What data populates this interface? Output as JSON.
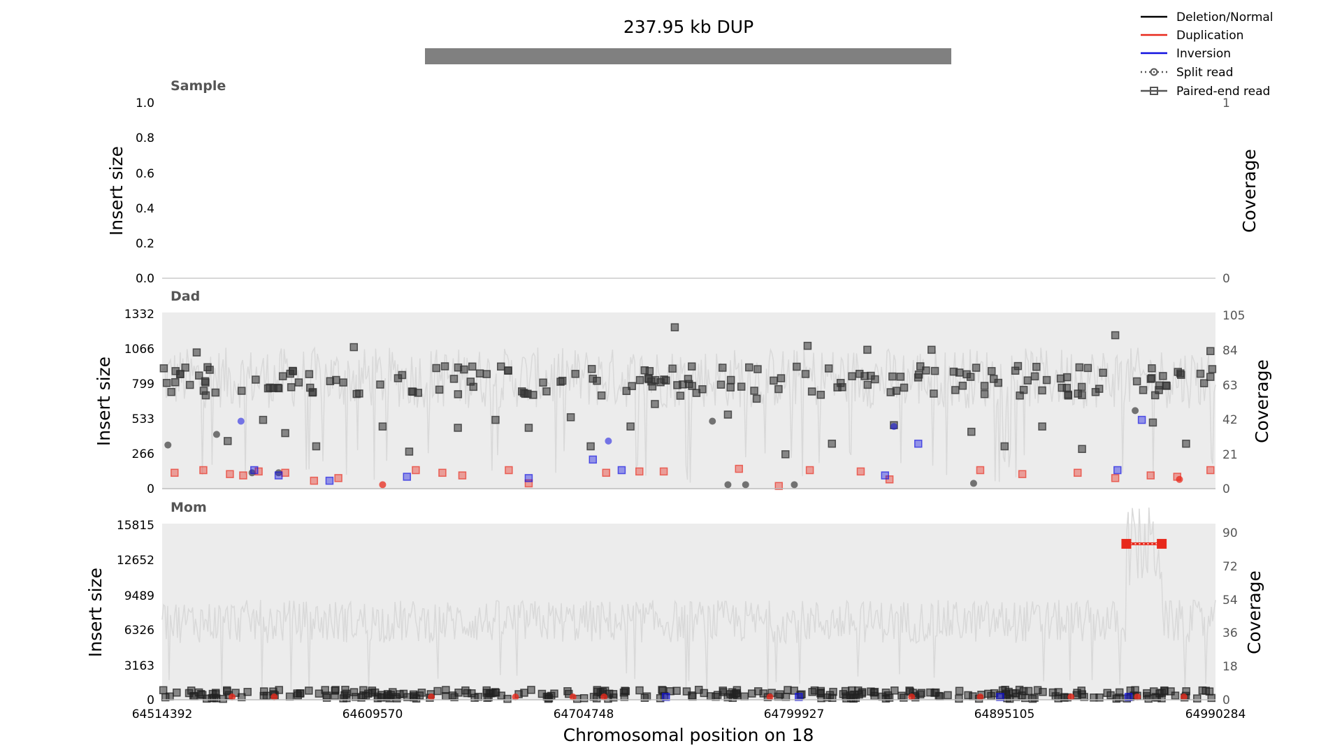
{
  "title": "237.95 kb DUP",
  "xlabel": "Chromosomal position on 18",
  "legend": [
    {
      "label": "Deletion/Normal",
      "color": "#000000",
      "style": "solid"
    },
    {
      "label": "Duplication",
      "color": "#e8291c",
      "style": "solid"
    },
    {
      "label": "Inversion",
      "color": "#1010e0",
      "style": "solid"
    },
    {
      "label": "Split read",
      "color": "#555555",
      "style": "dotted-circle"
    },
    {
      "label": "Paired-end read",
      "color": "#555555",
      "style": "solid-square"
    }
  ],
  "panels": [
    {
      "name": "Sample",
      "ylabel": "Insert size",
      "ylabel_right": "Coverage",
      "yticks": [
        "0.0",
        "0.2",
        "0.4",
        "0.6",
        "0.8",
        "1.0"
      ],
      "rticks": [
        "0",
        "1"
      ]
    },
    {
      "name": "Dad",
      "ylabel": "Insert size",
      "ylabel_right": "Coverage",
      "yticks": [
        "0",
        "266",
        "533",
        "799",
        "1066",
        "1332"
      ],
      "rticks": [
        "0",
        "21",
        "42",
        "63",
        "84",
        "105"
      ]
    },
    {
      "name": "Mom",
      "ylabel": "Insert size",
      "ylabel_right": "Coverage",
      "yticks": [
        "0",
        "3163",
        "6326",
        "9489",
        "12652",
        "15815"
      ],
      "rticks": [
        "0",
        "18",
        "36",
        "54",
        "72",
        "90"
      ]
    }
  ],
  "xticks": [
    "64514392",
    "64609570",
    "64704748",
    "64799927",
    "64895105",
    "64990284"
  ],
  "chart_data": {
    "type": "scatter",
    "title": "237.95 kb DUP",
    "xlabel": "Chromosomal position on 18",
    "xlim": [
      64514392,
      64990284
    ],
    "sv_interval": [
      64633398,
      64871348
    ],
    "colors": {
      "deletion_normal": "#000000",
      "duplication": "#e8291c",
      "inversion": "#1010e0",
      "coverage": "#d9d9d9"
    },
    "panels": [
      {
        "name": "Sample",
        "ylim": [
          0,
          1.0
        ],
        "coverage_ylim": [
          0,
          1
        ],
        "coverage_mean": null,
        "points": []
      },
      {
        "name": "Dad",
        "ylim": [
          0,
          1332
        ],
        "coverage_ylim": [
          0,
          105
        ],
        "coverage_mean": 66,
        "points": {
          "normal_paired_end_band": {
            "y_range": [
              700,
              930
            ],
            "count": 185
          },
          "normal_paired_end_scatter": [
            [
              64530000,
              1030
            ],
            [
              64544000,
              360
            ],
            [
              64560000,
              520
            ],
            [
              64570000,
              420
            ],
            [
              64584000,
              320
            ],
            [
              64601000,
              1070
            ],
            [
              64614000,
              470
            ],
            [
              64626000,
              280
            ],
            [
              64648000,
              460
            ],
            [
              64665000,
              520
            ],
            [
              64680000,
              460
            ],
            [
              64699000,
              540
            ],
            [
              64708000,
              320
            ],
            [
              64726000,
              470
            ],
            [
              64737000,
              640
            ],
            [
              64746000,
              1220
            ],
            [
              64752000,
              830
            ],
            [
              64770000,
              560
            ],
            [
              64783000,
              680
            ],
            [
              64796000,
              260
            ],
            [
              64806000,
              1080
            ],
            [
              64817000,
              340
            ],
            [
              64833000,
              1050
            ],
            [
              64845000,
              480
            ],
            [
              64862000,
              1050
            ],
            [
              64880000,
              430
            ],
            [
              64895000,
              320
            ],
            [
              64912000,
              470
            ],
            [
              64930000,
              300
            ],
            [
              64945000,
              1160
            ],
            [
              64962000,
              500
            ],
            [
              64977000,
              340
            ],
            [
              64988000,
              1040
            ]
          ],
          "normal_split_read": [
            [
              64517000,
              330
            ],
            [
              64539000,
              410
            ],
            [
              64555000,
              120
            ],
            [
              64567000,
              120
            ],
            [
              64763000,
              510
            ],
            [
              64770000,
              30
            ],
            [
              64778000,
              30
            ],
            [
              64800000,
              30
            ],
            [
              64881000,
              40
            ],
            [
              64954000,
              590
            ]
          ],
          "duplication_paired_end": [
            [
              64520000,
              120
            ],
            [
              64533000,
              140
            ],
            [
              64545000,
              110
            ],
            [
              64551000,
              100
            ],
            [
              64558000,
              130
            ],
            [
              64570000,
              120
            ],
            [
              64583000,
              60
            ],
            [
              64594000,
              80
            ],
            [
              64629000,
              140
            ],
            [
              64641000,
              120
            ],
            [
              64650000,
              100
            ],
            [
              64671000,
              140
            ],
            [
              64680000,
              40
            ],
            [
              64715000,
              120
            ],
            [
              64730000,
              130
            ],
            [
              64741000,
              130
            ],
            [
              64775000,
              150
            ],
            [
              64793000,
              20
            ],
            [
              64807000,
              140
            ],
            [
              64830000,
              130
            ],
            [
              64843000,
              70
            ],
            [
              64884000,
              140
            ],
            [
              64903000,
              110
            ],
            [
              64928000,
              120
            ],
            [
              64945000,
              80
            ],
            [
              64961000,
              100
            ],
            [
              64973000,
              90
            ],
            [
              64988000,
              140
            ]
          ],
          "duplication_split_read": [
            [
              64614000,
              30
            ],
            [
              64974000,
              70
            ]
          ],
          "inversion_paired_end": [
            [
              64556000,
              140
            ],
            [
              64567000,
              100
            ],
            [
              64590000,
              60
            ],
            [
              64625000,
              90
            ],
            [
              64680000,
              80
            ],
            [
              64709000,
              220
            ],
            [
              64722000,
              140
            ],
            [
              64841000,
              100
            ],
            [
              64856000,
              340
            ],
            [
              64946000,
              140
            ],
            [
              64957000,
              520
            ]
          ],
          "inversion_split_read": [
            [
              64550000,
              510
            ],
            [
              64716000,
              360
            ],
            [
              64845000,
              470
            ]
          ]
        }
      },
      {
        "name": "Mom",
        "ylim": [
          0,
          15815
        ],
        "coverage_ylim": [
          0,
          90
        ],
        "coverage_mean": 40,
        "coverage_spike": {
          "x_range": [
            64950000,
            64966000
          ],
          "mean": 78
        },
        "points": {
          "normal_paired_end_band": {
            "y_range": [
              80,
              900
            ],
            "count": 300
          },
          "duplication_paired_end_bridge": [
            [
              64950000,
              14000
            ],
            [
              64966000,
              14000
            ]
          ],
          "duplication_split_read": [
            [
              64546000,
              250
            ],
            [
              64565000,
              250
            ],
            [
              64636000,
              250
            ],
            [
              64674000,
              250
            ],
            [
              64700000,
              250
            ],
            [
              64714000,
              250
            ],
            [
              64789000,
              250
            ],
            [
              64853000,
              250
            ],
            [
              64884000,
              250
            ],
            [
              64925000,
              250
            ],
            [
              64955000,
              250
            ],
            [
              64976000,
              250
            ]
          ],
          "inversion_paired_end": [
            [
              64742000,
              250
            ],
            [
              64802000,
              250
            ],
            [
              64893000,
              250
            ],
            [
              64951000,
              250
            ]
          ]
        }
      }
    ]
  }
}
